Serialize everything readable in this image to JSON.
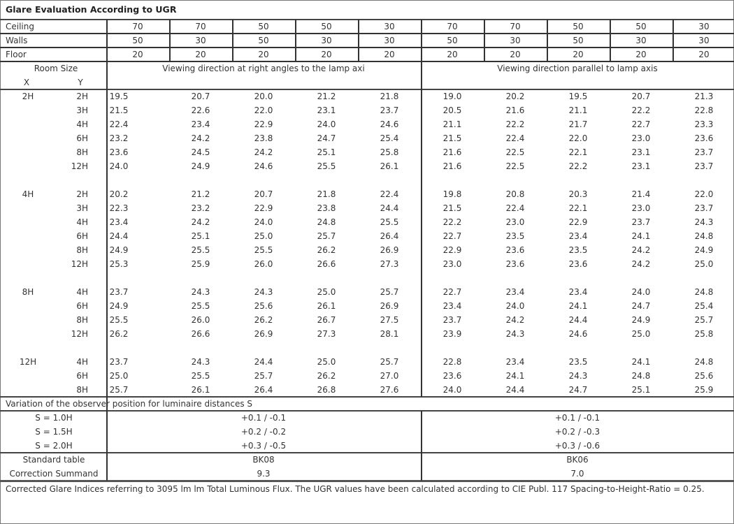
{
  "title": "Glare Evaluation According to UGR",
  "reflectances": [
    {
      "label": "Ceiling",
      "values": [
        "70",
        "70",
        "50",
        "50",
        "30",
        "70",
        "70",
        "50",
        "50",
        "30"
      ]
    },
    {
      "label": "Walls",
      "values": [
        "50",
        "30",
        "50",
        "30",
        "30",
        "50",
        "30",
        "50",
        "30",
        "30"
      ]
    },
    {
      "label": "Floor",
      "values": [
        "20",
        "20",
        "20",
        "20",
        "20",
        "20",
        "20",
        "20",
        "20",
        "20"
      ]
    }
  ],
  "header": {
    "room_size": "Room Size",
    "x": "X",
    "y": "Y",
    "perpendicular": "Viewing direction at right angles to the lamp axi",
    "parallel": "Viewing direction parallel to lamp axis"
  },
  "groups": [
    {
      "x": "2H",
      "rows": [
        {
          "y": "2H",
          "perpendicular": [
            "19.5",
            "20.7",
            "20.0",
            "21.2",
            "21.8"
          ],
          "parallel": [
            "19.0",
            "20.2",
            "19.5",
            "20.7",
            "21.3"
          ]
        },
        {
          "y": "3H",
          "perpendicular": [
            "21.5",
            "22.6",
            "22.0",
            "23.1",
            "23.7"
          ],
          "parallel": [
            "20.5",
            "21.6",
            "21.1",
            "22.2",
            "22.8"
          ]
        },
        {
          "y": "4H",
          "perpendicular": [
            "22.4",
            "23.4",
            "22.9",
            "24.0",
            "24.6"
          ],
          "parallel": [
            "21.1",
            "22.2",
            "21.7",
            "22.7",
            "23.3"
          ]
        },
        {
          "y": "6H",
          "perpendicular": [
            "23.2",
            "24.2",
            "23.8",
            "24.7",
            "25.4"
          ],
          "parallel": [
            "21.5",
            "22.4",
            "22.0",
            "23.0",
            "23.6"
          ]
        },
        {
          "y": "8H",
          "perpendicular": [
            "23.6",
            "24.5",
            "24.2",
            "25.1",
            "25.8"
          ],
          "parallel": [
            "21.6",
            "22.5",
            "22.1",
            "23.1",
            "23.7"
          ]
        },
        {
          "y": "12H",
          "perpendicular": [
            "24.0",
            "24.9",
            "24.6",
            "25.5",
            "26.1"
          ],
          "parallel": [
            "21.6",
            "22.5",
            "22.2",
            "23.1",
            "23.7"
          ]
        }
      ]
    },
    {
      "x": "4H",
      "rows": [
        {
          "y": "2H",
          "perpendicular": [
            "20.2",
            "21.2",
            "20.7",
            "21.8",
            "22.4"
          ],
          "parallel": [
            "19.8",
            "20.8",
            "20.3",
            "21.4",
            "22.0"
          ]
        },
        {
          "y": "3H",
          "perpendicular": [
            "22.3",
            "23.2",
            "22.9",
            "23.8",
            "24.4"
          ],
          "parallel": [
            "21.5",
            "22.4",
            "22.1",
            "23.0",
            "23.7"
          ]
        },
        {
          "y": "4H",
          "perpendicular": [
            "23.4",
            "24.2",
            "24.0",
            "24.8",
            "25.5"
          ],
          "parallel": [
            "22.2",
            "23.0",
            "22.9",
            "23.7",
            "24.3"
          ]
        },
        {
          "y": "6H",
          "perpendicular": [
            "24.4",
            "25.1",
            "25.0",
            "25.7",
            "26.4"
          ],
          "parallel": [
            "22.7",
            "23.5",
            "23.4",
            "24.1",
            "24.8"
          ]
        },
        {
          "y": "8H",
          "perpendicular": [
            "24.9",
            "25.5",
            "25.5",
            "26.2",
            "26.9"
          ],
          "parallel": [
            "22.9",
            "23.6",
            "23.5",
            "24.2",
            "24.9"
          ]
        },
        {
          "y": "12H",
          "perpendicular": [
            "25.3",
            "25.9",
            "26.0",
            "26.6",
            "27.3"
          ],
          "parallel": [
            "23.0",
            "23.6",
            "23.6",
            "24.2",
            "25.0"
          ]
        }
      ]
    },
    {
      "x": "8H",
      "rows": [
        {
          "y": "4H",
          "perpendicular": [
            "23.7",
            "24.3",
            "24.3",
            "25.0",
            "25.7"
          ],
          "parallel": [
            "22.7",
            "23.4",
            "23.4",
            "24.0",
            "24.8"
          ]
        },
        {
          "y": "6H",
          "perpendicular": [
            "24.9",
            "25.5",
            "25.6",
            "26.1",
            "26.9"
          ],
          "parallel": [
            "23.4",
            "24.0",
            "24.1",
            "24.7",
            "25.4"
          ]
        },
        {
          "y": "8H",
          "perpendicular": [
            "25.5",
            "26.0",
            "26.2",
            "26.7",
            "27.5"
          ],
          "parallel": [
            "23.7",
            "24.2",
            "24.4",
            "24.9",
            "25.7"
          ]
        },
        {
          "y": "12H",
          "perpendicular": [
            "26.2",
            "26.6",
            "26.9",
            "27.3",
            "28.1"
          ],
          "parallel": [
            "23.9",
            "24.3",
            "24.6",
            "25.0",
            "25.8"
          ]
        }
      ]
    },
    {
      "x": "12H",
      "rows": [
        {
          "y": "4H",
          "perpendicular": [
            "23.7",
            "24.3",
            "24.4",
            "25.0",
            "25.7"
          ],
          "parallel": [
            "22.8",
            "23.4",
            "23.5",
            "24.1",
            "24.8"
          ]
        },
        {
          "y": "6H",
          "perpendicular": [
            "25.0",
            "25.5",
            "25.7",
            "26.2",
            "27.0"
          ],
          "parallel": [
            "23.6",
            "24.1",
            "24.3",
            "24.8",
            "25.6"
          ]
        },
        {
          "y": "8H",
          "perpendicular": [
            "25.7",
            "26.1",
            "26.4",
            "26.8",
            "27.6"
          ],
          "parallel": [
            "24.0",
            "24.4",
            "24.7",
            "25.1",
            "25.9"
          ]
        }
      ]
    }
  ],
  "variation": {
    "label": "Variation of the observer position for luminaire distances S",
    "rows": [
      {
        "s": "S = 1.0H",
        "perpendicular": "+0.1 / -0.1",
        "parallel": "+0.1 / -0.1"
      },
      {
        "s": "S = 1.5H",
        "perpendicular": "+0.2 / -0.2",
        "parallel": "+0.2 / -0.3"
      },
      {
        "s": "S = 2.0H",
        "perpendicular": "+0.3 / -0.5",
        "parallel": "+0.3 / -0.6"
      }
    ]
  },
  "standard_table": {
    "label": "Standard table",
    "perpendicular": "BK08",
    "parallel": "BK06"
  },
  "correction_summand": {
    "label": "Correction Summand",
    "perpendicular": "9.3",
    "parallel": "7.0"
  },
  "footer": "Corrected Glare Indices referring to 3095 lm lm Total Luminous Flux. The UGR values have been calculated according to CIE Publ. 117    Spacing-to-Height-Ratio = 0.25."
}
